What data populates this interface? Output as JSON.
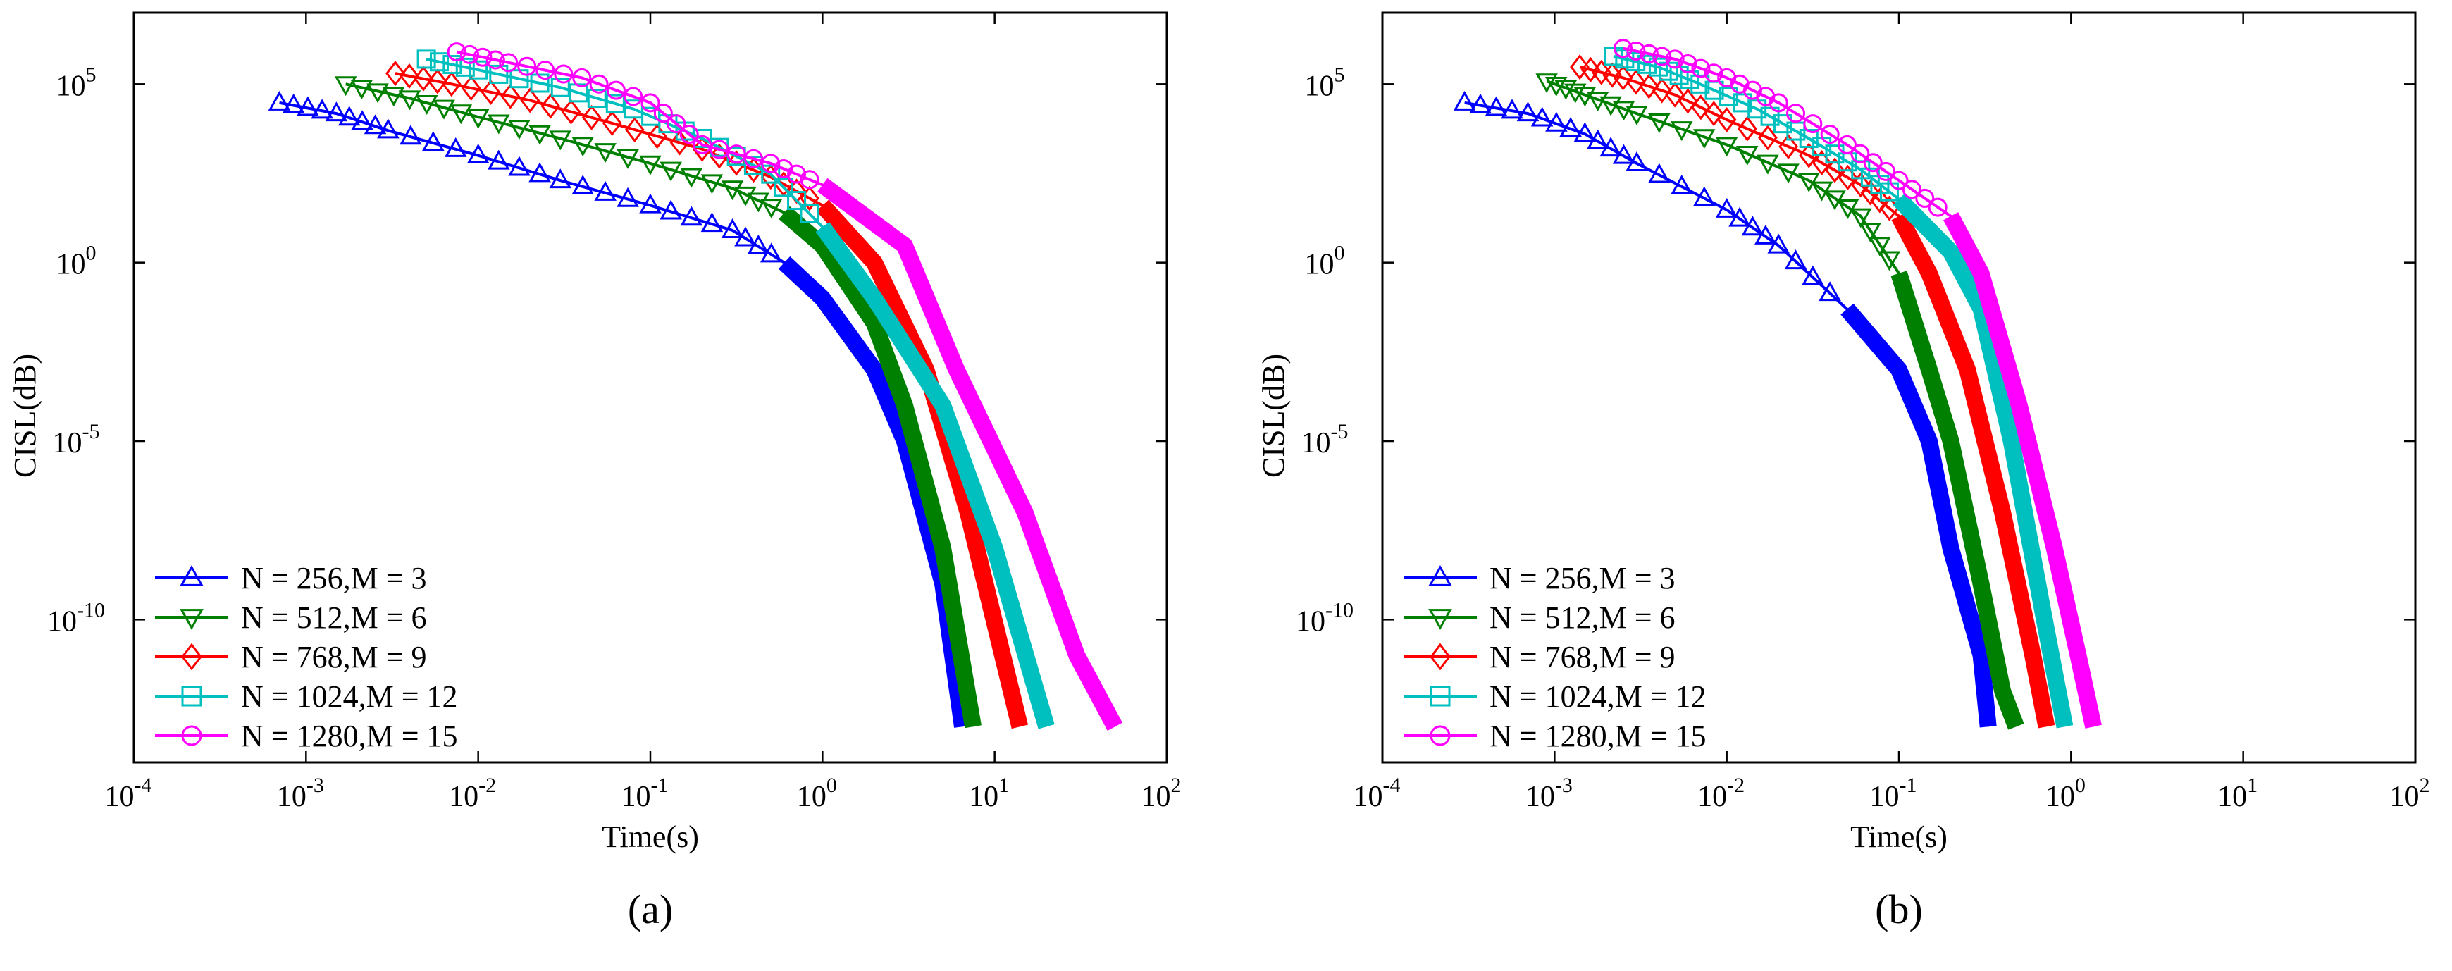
{
  "figure_labels": [
    "(a)",
    "(b)"
  ],
  "chart_data": [
    {
      "type": "line",
      "panel_label": "(a)",
      "title": "",
      "xlabel": "Time(s)",
      "ylabel": "CISL(dB)",
      "xscale": "log",
      "yscale": "log",
      "xlim": [
        0.0001,
        100
      ],
      "ylim": [
        1e-14,
        10000000.0
      ],
      "xticks": [
        0.0001,
        0.001,
        0.01,
        0.1,
        1,
        10,
        100
      ],
      "xtick_labels": [
        [
          "10",
          "-4"
        ],
        [
          "10",
          "-3"
        ],
        [
          "10",
          "-2"
        ],
        [
          "10",
          "-1"
        ],
        [
          "10",
          "0"
        ],
        [
          "10",
          "1"
        ],
        [
          "10",
          "2"
        ]
      ],
      "yticks": [
        1e-10,
        1e-05,
        1,
        100000.0
      ],
      "ytick_labels": [
        [
          "10",
          "-10"
        ],
        [
          "10",
          "-5"
        ],
        [
          "10",
          "0"
        ],
        [
          "10",
          "5"
        ]
      ],
      "grid": false,
      "legend_position": "bottom-left",
      "series": [
        {
          "name": "N = 256,M = 3",
          "color": "#0000ff",
          "marker": "triangle-up",
          "points": [
            [
              0.0007,
              30000.0
            ],
            [
              0.0015,
              15000.0
            ],
            [
              0.003,
              5000.0
            ],
            [
              0.01,
              1000.0
            ],
            [
              0.03,
              200
            ],
            [
              0.1,
              40
            ],
            [
              0.3,
              8
            ],
            [
              0.6,
              1
            ],
            [
              1,
              0.1
            ],
            [
              2,
              0.001
            ],
            [
              3,
              1e-05
            ],
            [
              5,
              1e-09
            ],
            [
              6.5,
              1e-13
            ]
          ]
        },
        {
          "name": "N = 512,M = 6",
          "color": "#008000",
          "marker": "triangle-down",
          "points": [
            [
              0.0017,
              100000.0
            ],
            [
              0.004,
              40000.0
            ],
            [
              0.01,
              12000.0
            ],
            [
              0.03,
              3000.0
            ],
            [
              0.1,
              600
            ],
            [
              0.3,
              120
            ],
            [
              0.6,
              25
            ],
            [
              1,
              3
            ],
            [
              2,
              0.02
            ],
            [
              3,
              0.0001
            ],
            [
              5,
              1e-08
            ],
            [
              7.5,
              1e-13
            ]
          ]
        },
        {
          "name": "N = 768,M = 9",
          "color": "#ff0000",
          "marker": "diamond",
          "points": [
            [
              0.0033,
              200000.0
            ],
            [
              0.007,
              100000.0
            ],
            [
              0.02,
              35000.0
            ],
            [
              0.06,
              8000.0
            ],
            [
              0.2,
              1500.0
            ],
            [
              0.5,
              250
            ],
            [
              1,
              40
            ],
            [
              2,
              1
            ],
            [
              4,
              0.001
            ],
            [
              7,
              1e-07
            ],
            [
              14,
              1e-13
            ]
          ]
        },
        {
          "name": "N = 1024,M = 12",
          "color": "#00bfbf",
          "marker": "square",
          "points": [
            [
              0.005,
              500000.0
            ],
            [
              0.01,
              250000.0
            ],
            [
              0.03,
              80000.0
            ],
            [
              0.08,
              20000.0
            ],
            [
              0.2,
              3000.0
            ],
            [
              0.5,
              300
            ],
            [
              1,
              10
            ],
            [
              2,
              0.1
            ],
            [
              5,
              0.0001
            ],
            [
              10,
              1e-08
            ],
            [
              20,
              1e-13
            ]
          ]
        },
        {
          "name": "N = 1280,M = 15",
          "color": "#ff00ff",
          "marker": "circle",
          "points": [
            [
              0.0075,
              800000.0
            ],
            [
              0.015,
              400000.0
            ],
            [
              0.04,
              150000.0
            ],
            [
              0.1,
              30000.0
            ],
            [
              0.2,
              2000.0
            ],
            [
              0.5,
              600
            ],
            [
              1,
              150
            ],
            [
              3,
              3
            ],
            [
              6,
              0.001
            ],
            [
              15,
              1e-07
            ],
            [
              30,
              1e-11
            ],
            [
              50,
              1e-13
            ]
          ]
        }
      ]
    },
    {
      "type": "line",
      "panel_label": "(b)",
      "title": "",
      "xlabel": "Time(s)",
      "ylabel": "CISL(dB)",
      "xscale": "log",
      "yscale": "log",
      "xlim": [
        0.0001,
        100
      ],
      "ylim": [
        1e-14,
        10000000.0
      ],
      "xticks": [
        0.0001,
        0.001,
        0.01,
        0.1,
        1,
        10,
        100
      ],
      "xtick_labels": [
        [
          "10",
          "-4"
        ],
        [
          "10",
          "-3"
        ],
        [
          "10",
          "-2"
        ],
        [
          "10",
          "-1"
        ],
        [
          "10",
          "0"
        ],
        [
          "10",
          "1"
        ],
        [
          "10",
          "2"
        ]
      ],
      "yticks": [
        1e-10,
        1e-05,
        1,
        100000.0
      ],
      "ytick_labels": [
        [
          "10",
          "-10"
        ],
        [
          "10",
          "-5"
        ],
        [
          "10",
          "0"
        ],
        [
          "10",
          "5"
        ]
      ],
      "grid": false,
      "legend_position": "bottom-left",
      "series": [
        {
          "name": "N = 256,M = 3",
          "color": "#0000ff",
          "marker": "triangle-up",
          "points": [
            [
              0.0003,
              30000.0
            ],
            [
              0.0007,
              15000.0
            ],
            [
              0.0015,
              4000.0
            ],
            [
              0.003,
              600
            ],
            [
              0.01,
              30
            ],
            [
              0.02,
              3
            ],
            [
              0.05,
              0.05
            ],
            [
              0.1,
              0.001
            ],
            [
              0.15,
              1e-05
            ],
            [
              0.2,
              1e-08
            ],
            [
              0.3,
              1e-11
            ],
            [
              0.33,
              1e-13
            ]
          ]
        },
        {
          "name": "N = 512,M = 6",
          "color": "#008000",
          "marker": "triangle-down",
          "points": [
            [
              0.0009,
              120000.0
            ],
            [
              0.0015,
              50000.0
            ],
            [
              0.003,
              15000.0
            ],
            [
              0.01,
              2000.0
            ],
            [
              0.03,
              200
            ],
            [
              0.06,
              20
            ],
            [
              0.1,
              0.5
            ],
            [
              0.15,
              0.001
            ],
            [
              0.2,
              1e-05
            ],
            [
              0.3,
              1e-09
            ],
            [
              0.4,
              1e-12
            ],
            [
              0.48,
              1e-13
            ]
          ]
        },
        {
          "name": "N = 768,M = 9",
          "color": "#ff0000",
          "marker": "diamond",
          "points": [
            [
              0.0014,
              300000.0
            ],
            [
              0.0025,
              150000.0
            ],
            [
              0.005,
              50000.0
            ],
            [
              0.01,
              10000.0
            ],
            [
              0.03,
              1000.0
            ],
            [
              0.06,
              150
            ],
            [
              0.1,
              20
            ],
            [
              0.15,
              0.5
            ],
            [
              0.25,
              0.001
            ],
            [
              0.4,
              1e-07
            ],
            [
              0.6,
              1e-11
            ],
            [
              0.72,
              1e-13
            ]
          ]
        },
        {
          "name": "N = 1024,M = 12",
          "color": "#00bfbf",
          "marker": "square",
          "points": [
            [
              0.0022,
              600000.0
            ],
            [
              0.004,
              300000.0
            ],
            [
              0.007,
              100000.0
            ],
            [
              0.015,
              20000.0
            ],
            [
              0.03,
              3000.0
            ],
            [
              0.06,
              400
            ],
            [
              0.1,
              60
            ],
            [
              0.2,
              2
            ],
            [
              0.3,
              0.05
            ],
            [
              0.45,
              1e-05
            ],
            [
              0.7,
              1e-10
            ],
            [
              0.92,
              1e-13
            ]
          ]
        },
        {
          "name": "N = 1280,M = 15",
          "color": "#ff00ff",
          "marker": "circle",
          "points": [
            [
              0.0025,
              1000000.0
            ],
            [
              0.005,
              500000.0
            ],
            [
              0.01,
              150000.0
            ],
            [
              0.02,
              30000.0
            ],
            [
              0.05,
              2000.0
            ],
            [
              0.1,
              200
            ],
            [
              0.2,
              20
            ],
            [
              0.3,
              0.5
            ],
            [
              0.5,
              0.0001
            ],
            [
              0.8,
              1e-08
            ],
            [
              1.1,
              1e-11
            ],
            [
              1.35,
              1e-13
            ]
          ]
        }
      ]
    }
  ]
}
